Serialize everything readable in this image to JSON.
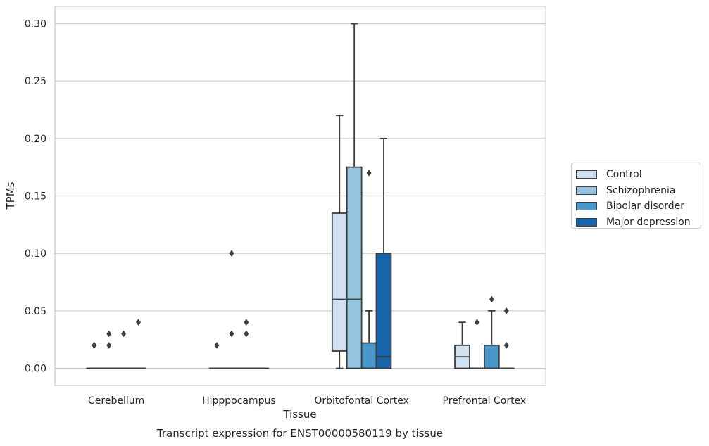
{
  "chart_data": {
    "type": "box",
    "title": "Transcript expression for ENST00000580119 by tissue",
    "xlabel": "Tissue",
    "ylabel": "TPMs",
    "ylim": [
      -0.015,
      0.315
    ],
    "yticks": [
      0.0,
      0.05,
      0.1,
      0.15,
      0.2,
      0.25,
      0.3
    ],
    "ytick_labels": [
      "0.00",
      "0.05",
      "0.10",
      "0.15",
      "0.20",
      "0.25",
      "0.30"
    ],
    "categories": [
      "Cerebellum",
      "Hipppocampus",
      "Orbitofontal Cortex",
      "Prefrontal Cortex"
    ],
    "grid": "horizontal",
    "legend_position": "right",
    "series": [
      {
        "name": "Control",
        "color": "#d0e1f2",
        "boxes": [
          {
            "q1": 0.0,
            "median": 0.0,
            "q3": 0.0,
            "whisker_low": 0.0,
            "whisker_high": 0.0,
            "outliers": [
              0.02,
              0.02
            ]
          },
          {
            "q1": 0.0,
            "median": 0.0,
            "q3": 0.0,
            "whisker_low": 0.0,
            "whisker_high": 0.0,
            "outliers": [
              0.02
            ]
          },
          {
            "q1": 0.015,
            "median": 0.06,
            "q3": 0.135,
            "whisker_low": 0.0,
            "whisker_high": 0.22,
            "outliers": []
          },
          {
            "q1": 0.0,
            "median": 0.01,
            "q3": 0.02,
            "whisker_low": 0.0,
            "whisker_high": 0.04,
            "outliers": []
          }
        ]
      },
      {
        "name": "Schizophrenia",
        "color": "#94c4df",
        "boxes": [
          {
            "q1": 0.0,
            "median": 0.0,
            "q3": 0.0,
            "whisker_low": 0.0,
            "whisker_high": 0.0,
            "outliers": [
              0.02,
              0.03
            ]
          },
          {
            "q1": 0.0,
            "median": 0.0,
            "q3": 0.0,
            "whisker_low": 0.0,
            "whisker_high": 0.0,
            "outliers": [
              0.03,
              0.1
            ]
          },
          {
            "q1": 0.0,
            "median": 0.06,
            "q3": 0.175,
            "whisker_low": 0.0,
            "whisker_high": 0.3,
            "outliers": []
          },
          {
            "q1": 0.0,
            "median": 0.0,
            "q3": 0.0,
            "whisker_low": 0.0,
            "whisker_high": 0.0,
            "outliers": [
              0.04
            ]
          }
        ]
      },
      {
        "name": "Bipolar disorder",
        "color": "#4a98c9",
        "boxes": [
          {
            "q1": 0.0,
            "median": 0.0,
            "q3": 0.0,
            "whisker_low": 0.0,
            "whisker_high": 0.0,
            "outliers": [
              0.03
            ]
          },
          {
            "q1": 0.0,
            "median": 0.0,
            "q3": 0.0,
            "whisker_low": 0.0,
            "whisker_high": 0.0,
            "outliers": [
              0.03,
              0.04
            ]
          },
          {
            "q1": 0.0,
            "median": 0.0,
            "q3": 0.022,
            "whisker_low": 0.0,
            "whisker_high": 0.05,
            "outliers": [
              0.17
            ]
          },
          {
            "q1": 0.0,
            "median": 0.0,
            "q3": 0.02,
            "whisker_low": 0.0,
            "whisker_high": 0.05,
            "outliers": [
              0.06
            ]
          }
        ]
      },
      {
        "name": "Major depression",
        "color": "#1764ab",
        "boxes": [
          {
            "q1": 0.0,
            "median": 0.0,
            "q3": 0.0,
            "whisker_low": 0.0,
            "whisker_high": 0.0,
            "outliers": [
              0.04
            ]
          },
          {
            "q1": 0.0,
            "median": 0.0,
            "q3": 0.0,
            "whisker_low": 0.0,
            "whisker_high": 0.0,
            "outliers": []
          },
          {
            "q1": 0.0,
            "median": 0.01,
            "q3": 0.1,
            "whisker_low": 0.0,
            "whisker_high": 0.2,
            "outliers": []
          },
          {
            "q1": 0.0,
            "median": 0.0,
            "q3": 0.0,
            "whisker_low": 0.0,
            "whisker_high": 0.0,
            "outliers": [
              0.02,
              0.05
            ]
          }
        ]
      }
    ]
  }
}
